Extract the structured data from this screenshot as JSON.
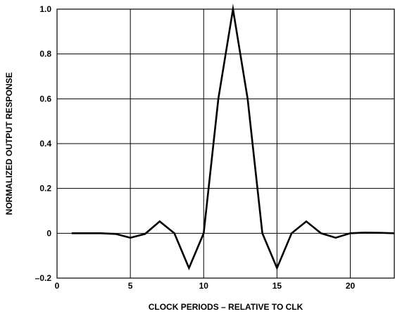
{
  "chart_data": {
    "type": "line",
    "title": "",
    "xlabel": "CLOCK PERIODS – RELATIVE TO CLK",
    "ylabel": "NORMALIZED OUTPUT RESPONSE",
    "xlim": [
      0,
      23
    ],
    "ylim": [
      -0.2,
      1.0
    ],
    "grid": true,
    "x_ticks": [
      {
        "value": 0,
        "label": "0"
      },
      {
        "value": 5,
        "label": "5"
      },
      {
        "value": 10,
        "label": "10"
      },
      {
        "value": 15,
        "label": "15"
      },
      {
        "value": 20,
        "label": "20"
      }
    ],
    "y_ticks": [
      {
        "value": -0.2,
        "label": "–0.2"
      },
      {
        "value": 0,
        "label": "0"
      },
      {
        "value": 0.2,
        "label": "0.2"
      },
      {
        "value": 0.4,
        "label": "0.4"
      },
      {
        "value": 0.6,
        "label": "0.6"
      },
      {
        "value": 0.8,
        "label": "0.8"
      },
      {
        "value": 1.0,
        "label": "1.0"
      }
    ],
    "series": [
      {
        "color": "#000000",
        "x": [
          1,
          2,
          3,
          4,
          5,
          6,
          7,
          8,
          9,
          10,
          11,
          12,
          13,
          14,
          15,
          16,
          17,
          18,
          19,
          20,
          21,
          22,
          23
        ],
        "y": [
          0,
          0,
          0,
          -0.003,
          -0.02,
          -0.003,
          0.053,
          0,
          -0.155,
          0,
          0.6,
          1.0,
          0.6,
          0,
          -0.155,
          0,
          0.053,
          0,
          -0.02,
          0,
          0.003,
          0.002,
          0
        ]
      }
    ]
  }
}
